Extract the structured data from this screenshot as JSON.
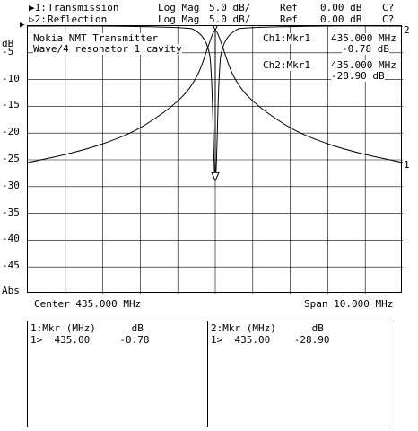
{
  "header": {
    "ch1_marker": "▶1:",
    "ch1_label": "Transmission",
    "ch2_marker": "▷2:",
    "ch2_label": "Reflection",
    "format": "Log Mag",
    "scale": "5.0 dB/",
    "ref_label": "Ref",
    "ref_value": "0.00 dB",
    "cal_status": "C?"
  },
  "title": {
    "line1": "Nokia NMT Transmitter",
    "line2": "Wave/4 resonator 1 cavity"
  },
  "plot": {
    "y_unit_top": "dB",
    "y_unit_bottom": "Abs",
    "y_ticks": [
      "-5",
      "-10",
      "-15",
      "-20",
      "-25",
      "-30",
      "-35",
      "-40",
      "-45"
    ],
    "ref_marker": "▶",
    "trace1_end": "1",
    "trace2_end": "2",
    "marker_readouts": [
      {
        "label": "Ch1:Mkr1",
        "freq": "435.000 MHz",
        "value": "-0.78 dB"
      },
      {
        "label": "Ch2:Mkr1",
        "freq": "435.000 MHz",
        "value": "-28.90 dB"
      }
    ]
  },
  "footer": {
    "center": "Center 435.000 MHz",
    "span": "Span 10.000 MHz"
  },
  "tables": [
    {
      "header": "1:Mkr (MHz)      dB",
      "row": "1>  435.00     -0.78"
    },
    {
      "header": "2:Mkr (MHz)      dB",
      "row": "1>  435.00    -28.90"
    }
  ],
  "chart_data": {
    "type": "line",
    "xlabel": "",
    "ylabel": "dB",
    "x_range_mhz": [
      430,
      440
    ],
    "ylim": [
      -50,
      0
    ],
    "grid": true,
    "series": [
      {
        "name": "Transmission",
        "x": [
          430,
          431,
          432,
          433,
          434,
          434.5,
          434.8,
          434.9,
          435,
          435.1,
          435.2,
          435.5,
          436,
          437,
          438,
          439,
          440
        ],
        "y": [
          -25.5,
          -24,
          -22,
          -19,
          -14,
          -9.5,
          -4,
          -2,
          -0.78,
          -2,
          -4,
          -9.5,
          -14,
          -19,
          -22,
          -24,
          -25.5
        ]
      },
      {
        "name": "Reflection",
        "x": [
          430,
          432,
          434,
          434.5,
          434.8,
          434.9,
          435,
          435.1,
          435.2,
          435.5,
          436,
          438,
          440
        ],
        "y": [
          0,
          0,
          -0.3,
          -1,
          -4,
          -10,
          -28.9,
          -10,
          -4,
          -1,
          -0.3,
          0,
          0
        ]
      }
    ],
    "markers": [
      {
        "channel": 1,
        "x": 435.0,
        "y": -0.78
      },
      {
        "channel": 2,
        "x": 435.0,
        "y": -28.9
      }
    ]
  }
}
